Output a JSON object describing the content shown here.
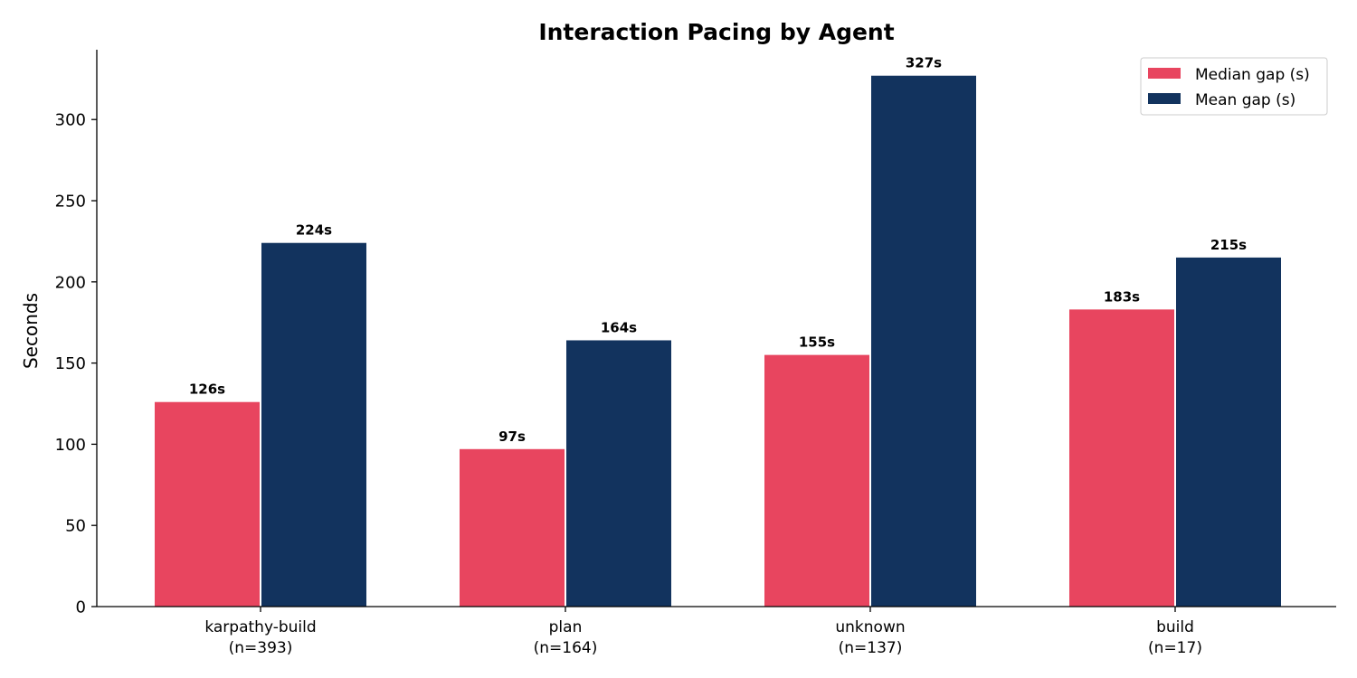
{
  "chart_data": {
    "type": "bar",
    "title": "Interaction Pacing by Agent",
    "xlabel": "",
    "ylabel": "Seconds",
    "ylim": [
      0,
      343
    ],
    "yticks": [
      0,
      50,
      100,
      150,
      200,
      250,
      300
    ],
    "categories": [
      "karpathy-build",
      "plan",
      "unknown",
      "build"
    ],
    "category_counts": [
      "(n=393)",
      "(n=164)",
      "(n=137)",
      "(n=17)"
    ],
    "series": [
      {
        "name": "Median gap (s)",
        "color": "#e8455f",
        "values": [
          126,
          97,
          155,
          183
        ],
        "labels": [
          "126s",
          "97s",
          "155s",
          "183s"
        ]
      },
      {
        "name": "Mean gap (s)",
        "color": "#12335e",
        "values": [
          224,
          164,
          327,
          215
        ],
        "labels": [
          "224s",
          "164s",
          "327s",
          "215s"
        ]
      }
    ],
    "legend_position": "top-right",
    "grid": false
  }
}
